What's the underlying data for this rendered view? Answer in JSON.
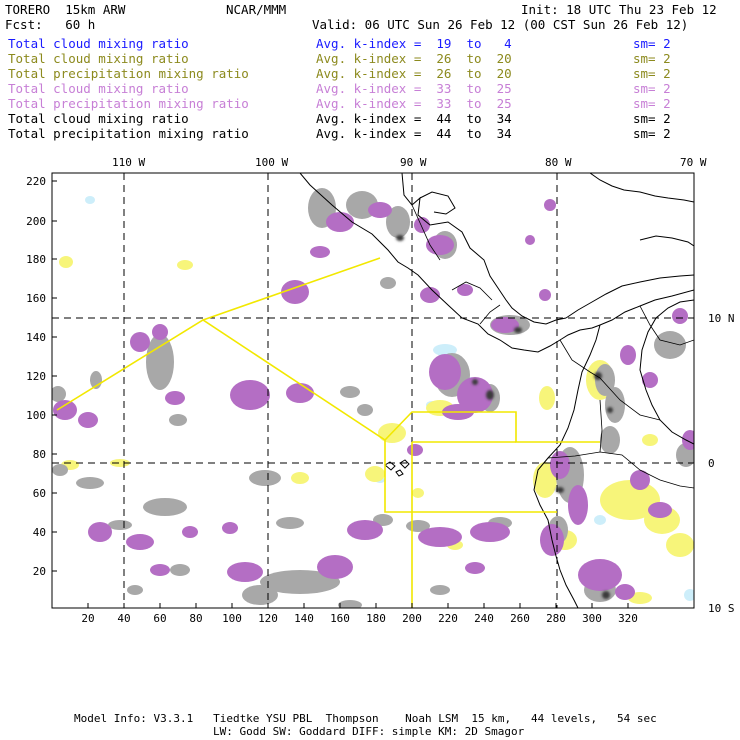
{
  "header": {
    "model": "TORERO  15km ARW",
    "org": "NCAR/MMM",
    "init": "Init: 18 UTC Thu 23 Feb 12",
    "fcst": "Fcst:   60 h",
    "valid": "Valid: 06 UTC Sun 26 Feb 12 (00 CST Sun 26 Feb 12)"
  },
  "legend": [
    {
      "field": "Total cloud mixing ratio",
      "kindex": "Avg. k-index =  19  to   4",
      "sm": "sm= 2",
      "color": "#1a1aff"
    },
    {
      "field": "Total cloud mixing ratio",
      "kindex": "Avg. k-index =  26  to  20",
      "sm": "sm= 2",
      "color": "#8c8a1e"
    },
    {
      "field": "Total precipitation mixing ratio",
      "kindex": "Avg. k-index =  26  to  20",
      "sm": "sm= 2",
      "color": "#8c8a1e"
    },
    {
      "field": "Total cloud mixing ratio",
      "kindex": "Avg. k-index =  33  to  25",
      "sm": "sm= 2",
      "color": "#c77fd6"
    },
    {
      "field": "Total precipitation mixing ratio",
      "kindex": "Avg. k-index =  33  to  25",
      "sm": "sm= 2",
      "color": "#c77fd6"
    },
    {
      "field": "Total cloud mixing ratio",
      "kindex": "Avg. k-index =  44  to  34",
      "sm": "sm= 2",
      "color": "#000000"
    },
    {
      "field": "Total precipitation mixing ratio",
      "kindex": "Avg. k-index =  44  to  34",
      "sm": "sm= 2",
      "color": "#000000"
    }
  ],
  "map": {
    "lon_labels": [
      "110 W",
      "100 W",
      "90 W",
      "80 W",
      "70 W"
    ],
    "lat_labels": [
      "10 N",
      "0",
      "10 S"
    ],
    "x_ticks": [
      "20",
      "40",
      "60",
      "80",
      "100",
      "120",
      "140",
      "160",
      "180",
      "200",
      "220",
      "240",
      "260",
      "280",
      "300",
      "320"
    ],
    "y_ticks": [
      "220",
      "200",
      "180",
      "160",
      "140",
      "120",
      "100",
      "80",
      "60",
      "40",
      "20"
    ],
    "colors": {
      "grey": "#a8a8a8",
      "purple": "#b46ec4",
      "yellow": "#f7f57a",
      "lightblue": "#cdeefa",
      "flight_track": "#f2e800",
      "dark_core": "#3a3a3a"
    }
  },
  "footer": {
    "line1": "Model Info: V3.3.1   Tiedtke YSU PBL  Thompson    Noah LSM  15 km,   44 levels,   54 sec",
    "line2": "LW: Godd SW: Goddard DIFF: simple KM: 2D Smagor"
  }
}
